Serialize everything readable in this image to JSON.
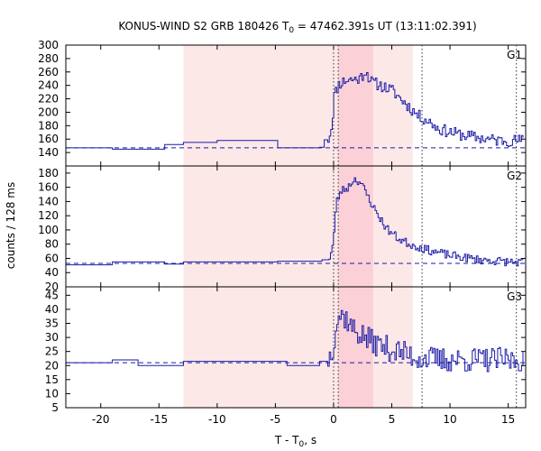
{
  "chart_data": {
    "type": "line",
    "title_main": "KONUS-WIND S2 GRB 180426 T",
    "title_sub": "0",
    "title_rest": " = 47462.391s UT (13:11:02.391)",
    "ylabel": "counts / 128 ms",
    "xlabel_main": "T - T",
    "xlabel_sub": "0",
    "xlabel_rest": ", s",
    "xlim": [
      -23,
      16.5
    ],
    "x_ticks": [
      -20,
      -15,
      -10,
      -5,
      0,
      5,
      10,
      15
    ],
    "x_tick_labels": [
      "-20",
      "-15",
      "-10",
      "-5",
      "0",
      "5",
      "10",
      "15"
    ],
    "shaded_regions": [
      {
        "x": [
          -12.9,
          6.8
        ],
        "color": "#fde8e8"
      },
      {
        "x": [
          0.4,
          3.4
        ],
        "color": "#fbd0d6"
      }
    ],
    "vertical_dotted_lines": [
      0.0,
      0.4,
      7.6,
      15.7
    ],
    "line_color": "#1a1aa6",
    "panels": [
      {
        "name": "G1",
        "ylim": [
          120,
          300
        ],
        "y_ticks": [
          120,
          140,
          160,
          180,
          200,
          220,
          240,
          260,
          280,
          300
        ],
        "y_tick_labels": [
          "",
          "140",
          "160",
          "180",
          "200",
          "220",
          "240",
          "260",
          "280",
          "300"
        ],
        "background": 147,
        "steps": [
          [
            -23,
            147
          ],
          [
            -19,
            145
          ],
          [
            -14.5,
            152
          ],
          [
            -12.9,
            155
          ],
          [
            -10,
            158
          ],
          [
            -7.5,
            158
          ],
          [
            -4.8,
            147
          ],
          [
            -1.2,
            148
          ],
          [
            -0.8,
            159
          ]
        ],
        "burst_start": -0.5,
        "burst_end": 16.3,
        "seed": 11,
        "profile": [
          [
            -0.5,
            160
          ],
          [
            -0.2,
            180
          ],
          [
            0.0,
            225
          ],
          [
            0.4,
            242
          ],
          [
            1.0,
            248
          ],
          [
            2.2,
            250
          ],
          [
            2.7,
            262
          ],
          [
            3.2,
            245
          ],
          [
            4.0,
            240
          ],
          [
            5.0,
            232
          ],
          [
            6.2,
            212
          ],
          [
            7.2,
            195
          ],
          [
            8.0,
            188
          ],
          [
            9.0,
            175
          ],
          [
            10.5,
            168
          ],
          [
            12.0,
            163
          ],
          [
            14.0,
            158
          ],
          [
            16.3,
            158
          ]
        ],
        "noise": 9
      },
      {
        "name": "G2",
        "ylim": [
          20,
          190
        ],
        "y_ticks": [
          20,
          40,
          60,
          80,
          100,
          120,
          140,
          160,
          180
        ],
        "y_tick_labels": [
          "20",
          "40",
          "60",
          "80",
          "100",
          "120",
          "140",
          "160",
          "180"
        ],
        "background": 53,
        "steps": [
          [
            -23,
            51
          ],
          [
            -19,
            55
          ],
          [
            -14.5,
            52
          ],
          [
            -12.9,
            55
          ],
          [
            -8,
            55
          ],
          [
            -4.8,
            56
          ],
          [
            -1.0,
            58
          ]
        ],
        "burst_start": -0.4,
        "burst_end": 16.3,
        "seed": 23,
        "profile": [
          [
            -0.4,
            62
          ],
          [
            -0.1,
            80
          ],
          [
            0.2,
            140
          ],
          [
            0.6,
            155
          ],
          [
            1.2,
            160
          ],
          [
            1.7,
            172
          ],
          [
            2.2,
            168
          ],
          [
            2.8,
            150
          ],
          [
            3.5,
            128
          ],
          [
            4.5,
            102
          ],
          [
            5.5,
            88
          ],
          [
            6.5,
            80
          ],
          [
            8.0,
            72
          ],
          [
            10.0,
            64
          ],
          [
            12.5,
            58
          ],
          [
            16.3,
            54
          ]
        ],
        "noise": 6
      },
      {
        "name": "G3",
        "ylim": [
          5,
          48
        ],
        "y_ticks": [
          5,
          10,
          15,
          20,
          25,
          30,
          35,
          40,
          45
        ],
        "y_tick_labels": [
          "5",
          "10",
          "15",
          "20",
          "25",
          "30",
          "35",
          "40",
          "45"
        ],
        "background": 21,
        "steps": [
          [
            -23,
            21
          ],
          [
            -19,
            22
          ],
          [
            -16.8,
            20
          ],
          [
            -12.9,
            21.5
          ],
          [
            -8,
            21.5
          ],
          [
            -4,
            20
          ],
          [
            -1.2,
            21.5
          ]
        ],
        "burst_start": -0.5,
        "burst_end": 16.3,
        "seed": 37,
        "profile": [
          [
            -0.5,
            22
          ],
          [
            -0.1,
            27
          ],
          [
            0.2,
            36
          ],
          [
            0.5,
            38
          ],
          [
            1.0,
            37
          ],
          [
            1.6,
            33
          ],
          [
            2.3,
            31
          ],
          [
            3.0,
            29
          ],
          [
            4.0,
            27
          ],
          [
            5.5,
            25
          ],
          [
            7.0,
            23
          ],
          [
            9.0,
            22
          ],
          [
            12.0,
            22
          ],
          [
            16.3,
            22
          ]
        ],
        "noise": 4.5
      }
    ]
  }
}
